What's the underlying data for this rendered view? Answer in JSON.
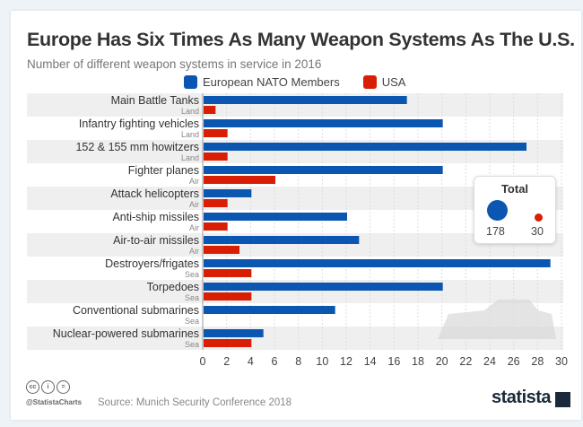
{
  "chart_data": {
    "type": "bar",
    "orientation": "horizontal",
    "title": "Europe Has Six Times As Many Weapon Systems As The U.S.",
    "subtitle": "Number of different weapon systems in service in 2016",
    "categories": [
      "Main Battle Tanks",
      "Infantry fighting vehicles",
      "152 & 155 mm howitzers",
      "Fighter planes",
      "Attack helicopters",
      "Anti-ship missiles",
      "Air-to-air missiles",
      "Destroyers/frigates",
      "Torpedoes",
      "Conventional submarines",
      "Nuclear-powered submarines"
    ],
    "sublabels": [
      "Land",
      "Land",
      "Land",
      "Air",
      "Air",
      "Air",
      "Air",
      "Sea",
      "Sea",
      "Sea",
      "Sea"
    ],
    "series": [
      {
        "name": "European NATO Members",
        "color": "#0a56b0",
        "values": [
          17,
          20,
          27,
          20,
          4,
          12,
          13,
          29,
          20,
          11,
          5
        ]
      },
      {
        "name": "USA",
        "color": "#d81e05",
        "values": [
          1,
          2,
          2,
          6,
          2,
          2,
          3,
          4,
          4,
          0,
          4
        ]
      }
    ],
    "xlim": [
      0,
      30
    ],
    "xticks": [
      0,
      2,
      4,
      6,
      8,
      10,
      12,
      14,
      16,
      18,
      20,
      22,
      24,
      26,
      28,
      30
    ],
    "grid": true,
    "legend": "top",
    "totals": {
      "label": "Total",
      "europe": "178",
      "usa": "30"
    }
  },
  "footer": {
    "source": "Source: Munich Security Conference 2018",
    "handle": "@StatistaCharts",
    "logo": "statista",
    "cc": [
      "cc",
      "i",
      "="
    ]
  }
}
